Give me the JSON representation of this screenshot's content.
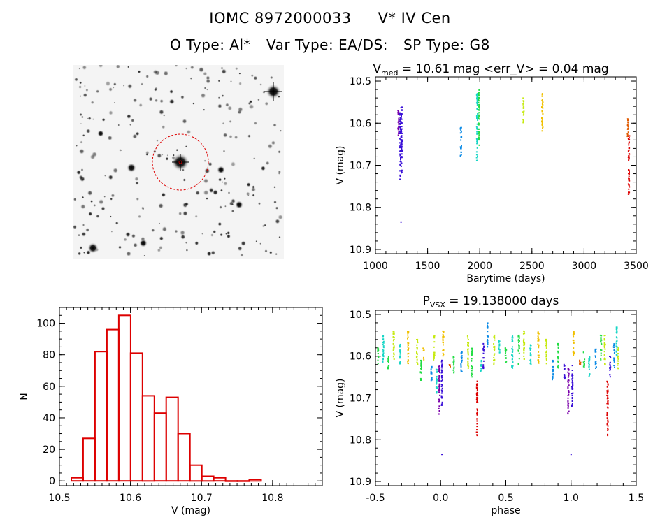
{
  "header": {
    "id_label": "IOMC 8972000033",
    "star_name": "V* IV Cen",
    "o_type": "O Type: Al*",
    "var_type": "Var Type: EA/DS:",
    "sp_type": "SP Type: G8"
  },
  "colors": {
    "histogram": "#dd0000",
    "finder_circle": "#dd0000",
    "seasons": [
      "#7a00aa",
      "#3a10d8",
      "#0a8ae6",
      "#18d6c6",
      "#22dd44",
      "#c6ea10",
      "#f0c000",
      "#e05a00",
      "#dd0000"
    ]
  },
  "chart_data": [
    {
      "type": "scatter",
      "panel": "lightcurve",
      "title_main": "V",
      "title_sub": "med",
      "title_rest": " = 10.61 mag <err_V> = 0.04 mag",
      "xlabel": "Barytime (days)",
      "ylabel": "V (mag)",
      "xlim": [
        1000,
        3500
      ],
      "ylim": [
        10.91,
        10.49
      ],
      "y_inverted": true,
      "xticks": [
        "1000",
        "1500",
        "2000",
        "2500",
        "3000",
        "3500"
      ],
      "yticks": [
        "10.5",
        "10.6",
        "10.7",
        "10.8",
        "10.9"
      ],
      "groups": [
        {
          "x": 1220,
          "ymin": 10.57,
          "ymax": 10.63
        },
        {
          "x": 1238,
          "ymin": 10.57,
          "ymax": 10.74
        },
        {
          "x": 1250,
          "ymin": 10.56,
          "ymax": 10.72
        },
        {
          "x": 1820,
          "ymin": 10.61,
          "ymax": 10.68
        },
        {
          "x": 1975,
          "ymin": 10.53,
          "ymax": 10.69
        },
        {
          "x": 1992,
          "ymin": 10.52,
          "ymax": 10.66
        },
        {
          "x": 2420,
          "ymin": 10.54,
          "ymax": 10.6
        },
        {
          "x": 2600,
          "ymin": 10.53,
          "ymax": 10.62
        },
        {
          "x": 3420,
          "ymin": 10.59,
          "ymax": 10.64
        },
        {
          "x": 3430,
          "ymin": 10.63,
          "ymax": 10.78
        }
      ],
      "outliers": [
        {
          "x": 1245,
          "y": 10.835
        }
      ]
    },
    {
      "type": "bar",
      "panel": "histogram",
      "title": "",
      "xlabel": "V (mag)",
      "ylabel": "N",
      "xlim": [
        10.5,
        10.87
      ],
      "ylim": [
        -3,
        110
      ],
      "bin_width": 0.0167,
      "bin_start": 10.5167,
      "values": [
        2,
        27,
        82,
        96,
        105,
        81,
        54,
        43,
        53,
        30,
        10,
        3,
        2,
        0,
        0,
        1
      ],
      "xticks": [
        "10.5",
        "10.6",
        "10.7",
        "10.8"
      ],
      "yticks": [
        "0",
        "20",
        "40",
        "60",
        "80",
        "100"
      ]
    },
    {
      "type": "scatter",
      "panel": "phased",
      "title_main": "P",
      "title_sub": "VSX",
      "title_rest": " = 19.138000 days",
      "xlabel": "phase",
      "ylabel": "V (mag)",
      "xlim": [
        -0.5,
        1.5
      ],
      "ylim": [
        10.91,
        10.49
      ],
      "y_inverted": true,
      "period_days": 19.138,
      "xticks": [
        "-0.5",
        "0.0",
        "0.5",
        "1.0",
        "1.5"
      ],
      "yticks": [
        "10.5",
        "10.6",
        "10.7",
        "10.8",
        "10.9"
      ],
      "groups": [
        {
          "x": -0.48,
          "ymin": 10.58,
          "ymax": 10.62,
          "c": 4
        },
        {
          "x": -0.44,
          "ymin": 10.55,
          "ymax": 10.62,
          "c": 3
        },
        {
          "x": -0.4,
          "ymin": 10.59,
          "ymax": 10.63,
          "c": 4
        },
        {
          "x": -0.36,
          "ymin": 10.54,
          "ymax": 10.61,
          "c": 5
        },
        {
          "x": -0.31,
          "ymin": 10.57,
          "ymax": 10.62,
          "c": 3
        },
        {
          "x": -0.25,
          "ymin": 10.54,
          "ymax": 10.62,
          "c": 6
        },
        {
          "x": -0.18,
          "ymin": 10.56,
          "ymax": 10.62,
          "c": 5
        },
        {
          "x": -0.15,
          "ymin": 10.61,
          "ymax": 10.66,
          "c": 4
        },
        {
          "x": -0.13,
          "ymin": 10.58,
          "ymax": 10.61,
          "c": 6
        },
        {
          "x": -0.07,
          "ymin": 10.62,
          "ymax": 10.66,
          "c": 2
        },
        {
          "x": -0.05,
          "ymin": 10.55,
          "ymax": 10.61,
          "c": 5
        },
        {
          "x": -0.03,
          "ymin": 10.63,
          "ymax": 10.69,
          "c": 3
        },
        {
          "x": -0.01,
          "ymin": 10.62,
          "ymax": 10.74,
          "c": 0
        },
        {
          "x": 0.01,
          "ymin": 10.61,
          "ymax": 10.72,
          "c": 1
        },
        {
          "x": 0.02,
          "ymin": 10.54,
          "ymax": 10.6,
          "c": 6
        },
        {
          "x": 0.07,
          "ymin": 10.62,
          "ymax": 10.63,
          "c": 7
        },
        {
          "x": 0.1,
          "ymin": 10.6,
          "ymax": 10.64,
          "c": 4
        },
        {
          "x": 0.16,
          "ymin": 10.59,
          "ymax": 10.64,
          "c": 2
        },
        {
          "x": 0.21,
          "ymin": 10.55,
          "ymax": 10.63,
          "c": 5
        },
        {
          "x": 0.24,
          "ymin": 10.58,
          "ymax": 10.65,
          "c": 4
        },
        {
          "x": 0.28,
          "ymin": 10.66,
          "ymax": 10.79,
          "c": 8
        },
        {
          "x": 0.31,
          "ymin": 10.61,
          "ymax": 10.64,
          "c": 3
        },
        {
          "x": 0.33,
          "ymin": 10.57,
          "ymax": 10.63,
          "c": 1
        },
        {
          "x": 0.36,
          "ymin": 10.52,
          "ymax": 10.58,
          "c": 2
        },
        {
          "x": 0.41,
          "ymin": 10.55,
          "ymax": 10.62,
          "c": 5
        },
        {
          "x": 0.45,
          "ymin": 10.56,
          "ymax": 10.6,
          "c": 3
        },
        {
          "x": 0.5,
          "ymin": 10.58,
          "ymax": 10.62,
          "c": 4
        },
        {
          "x": 0.55,
          "ymin": 10.55,
          "ymax": 10.63,
          "c": 3
        },
        {
          "x": 0.6,
          "ymin": 10.55,
          "ymax": 10.62,
          "c": 4
        },
        {
          "x": 0.64,
          "ymin": 10.54,
          "ymax": 10.61,
          "c": 5
        },
        {
          "x": 0.69,
          "ymin": 10.57,
          "ymax": 10.62,
          "c": 3
        },
        {
          "x": 0.75,
          "ymin": 10.54,
          "ymax": 10.62,
          "c": 6
        },
        {
          "x": 0.81,
          "ymin": 10.56,
          "ymax": 10.62,
          "c": 5
        },
        {
          "x": 0.86,
          "ymin": 10.61,
          "ymax": 10.66,
          "c": 2
        },
        {
          "x": 0.9,
          "ymin": 10.57,
          "ymax": 10.63,
          "c": 4
        },
        {
          "x": 0.95,
          "ymin": 10.62,
          "ymax": 10.66,
          "c": 1
        },
        {
          "x": 0.98,
          "ymin": 10.63,
          "ymax": 10.74,
          "c": 0
        },
        {
          "x": 1.01,
          "ymin": 10.62,
          "ymax": 10.72,
          "c": 1
        },
        {
          "x": 1.02,
          "ymin": 10.54,
          "ymax": 10.6,
          "c": 6
        },
        {
          "x": 1.07,
          "ymin": 10.61,
          "ymax": 10.62,
          "c": 7
        },
        {
          "x": 1.1,
          "ymin": 10.59,
          "ymax": 10.63,
          "c": 4
        },
        {
          "x": 1.14,
          "ymin": 10.6,
          "ymax": 10.65,
          "c": 3
        },
        {
          "x": 1.19,
          "ymin": 10.58,
          "ymax": 10.63,
          "c": 2
        },
        {
          "x": 1.23,
          "ymin": 10.55,
          "ymax": 10.61,
          "c": 4
        },
        {
          "x": 1.26,
          "ymin": 10.55,
          "ymax": 10.62,
          "c": 5
        },
        {
          "x": 1.28,
          "ymin": 10.66,
          "ymax": 10.79,
          "c": 8
        },
        {
          "x": 1.3,
          "ymin": 10.6,
          "ymax": 10.65,
          "c": 1
        },
        {
          "x": 1.33,
          "ymin": 10.57,
          "ymax": 10.63,
          "c": 2
        },
        {
          "x": 1.35,
          "ymin": 10.53,
          "ymax": 10.6,
          "c": 3
        },
        {
          "x": 1.36,
          "ymin": 10.58,
          "ymax": 10.63,
          "c": 5
        }
      ],
      "outliers": [
        {
          "x": 0.01,
          "y": 10.835
        },
        {
          "x": 1.0,
          "y": 10.835
        }
      ]
    }
  ]
}
